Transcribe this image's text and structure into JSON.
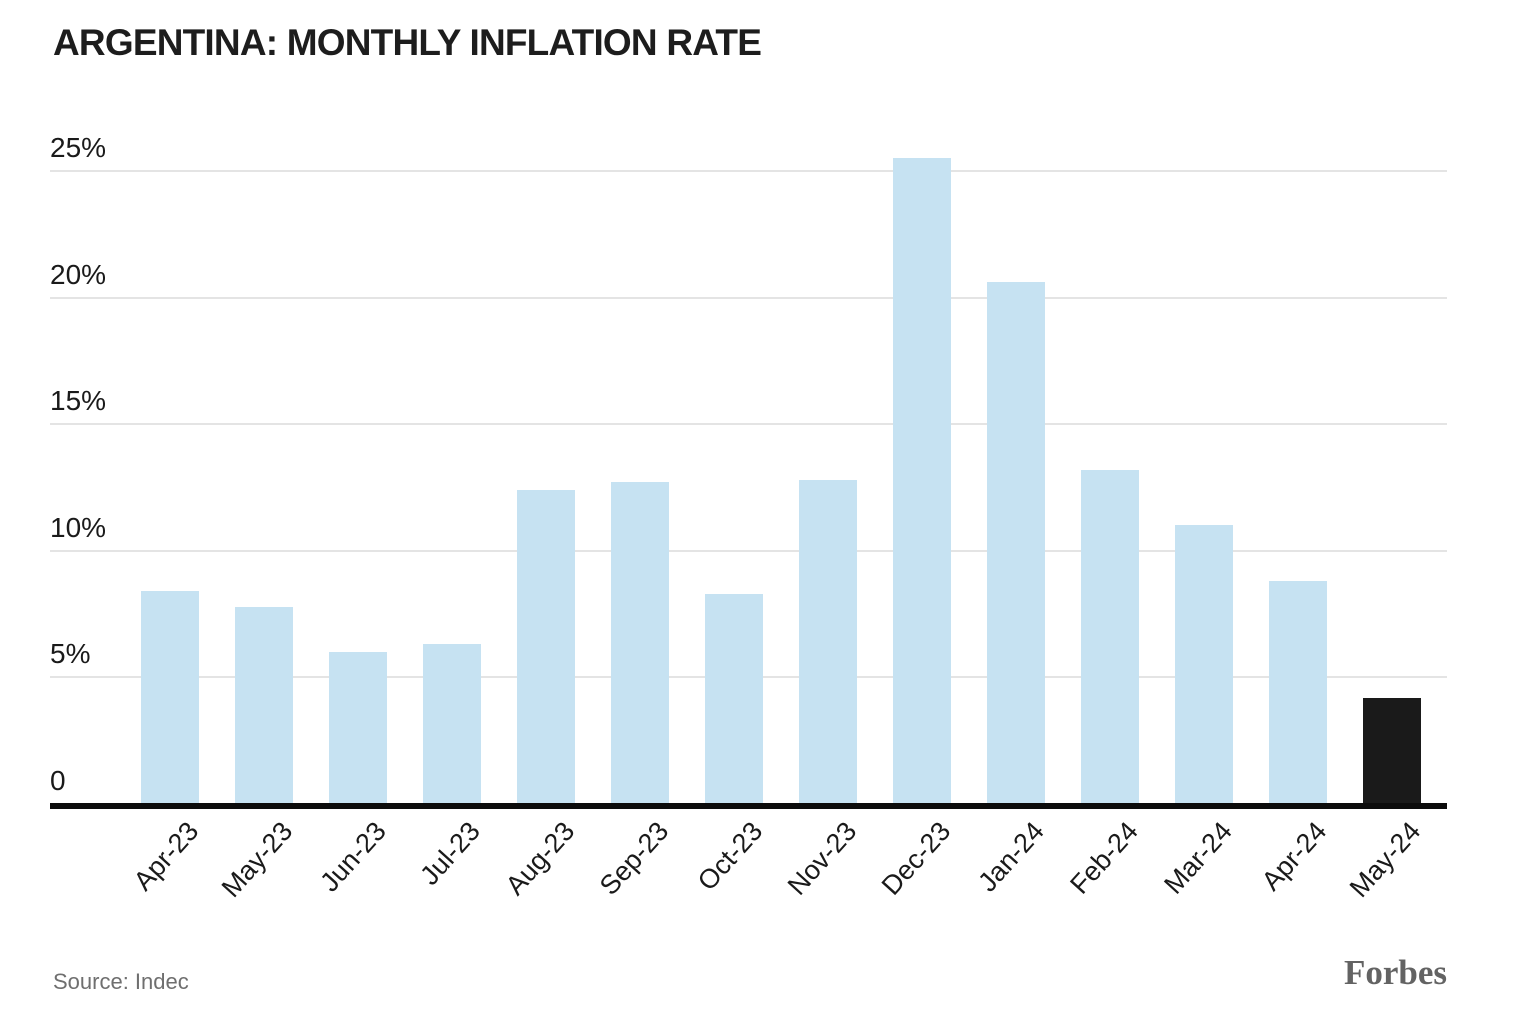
{
  "header": {
    "title": "ARGENTINA: MONTHLY INFLATION RATE"
  },
  "footer": {
    "source": "Source: Indec",
    "brand": "Forbes"
  },
  "colors": {
    "background": "#ffffff",
    "bar": "#c6e2f2",
    "bar_highlight": "#1a1a1a",
    "gridline": "#e4e4e4",
    "axis_line": "#0c0c0c",
    "title_text": "#1d1d1d",
    "axis_text": "#1a1a1a",
    "source_text": "#6f6f6f",
    "brand_text": "#636363"
  },
  "chart_data": {
    "type": "bar",
    "title": "ARGENTINA: MONTHLY INFLATION RATE",
    "categories": [
      "Apr-23",
      "May-23",
      "Jun-23",
      "Jul-23",
      "Aug-23",
      "Sep-23",
      "Oct-23",
      "Nov-23",
      "Dec-23",
      "Jan-24",
      "Feb-24",
      "Mar-24",
      "Apr-24",
      "May-24"
    ],
    "values": [
      8.4,
      7.8,
      6.0,
      6.3,
      12.4,
      12.7,
      8.3,
      12.8,
      25.5,
      20.6,
      13.2,
      11.0,
      8.8,
      4.2
    ],
    "unit": "percent",
    "highlight_category": "May-24",
    "xlabel": "",
    "ylabel": "",
    "ylim": [
      0,
      26
    ],
    "yticks": [
      {
        "value": 0,
        "label": "0"
      },
      {
        "value": 5,
        "label": "5%"
      },
      {
        "value": 10,
        "label": "10%"
      },
      {
        "value": 15,
        "label": "15%"
      },
      {
        "value": 20,
        "label": "20%"
      },
      {
        "value": 25,
        "label": "25%"
      }
    ],
    "grid": true,
    "legend": false,
    "source": "Source: Indec",
    "brand": "Forbes"
  }
}
